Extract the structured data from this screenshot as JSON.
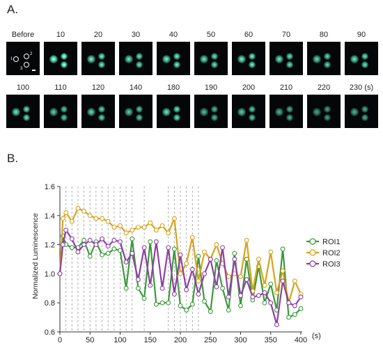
{
  "panel_a": {
    "letter": "A.",
    "frames": [
      {
        "label": "Before",
        "intensity": 0.0
      },
      {
        "label": "10",
        "intensity": 1.0
      },
      {
        "label": "20",
        "intensity": 0.85
      },
      {
        "label": "30",
        "intensity": 0.8
      },
      {
        "label": "40",
        "intensity": 0.85
      },
      {
        "label": "50",
        "intensity": 0.8
      },
      {
        "label": "60",
        "intensity": 0.85
      },
      {
        "label": "70",
        "intensity": 0.8
      },
      {
        "label": "80",
        "intensity": 0.75
      },
      {
        "label": "90",
        "intensity": 0.8
      },
      {
        "label": "100",
        "intensity": 0.8
      },
      {
        "label": "110",
        "intensity": 0.7
      },
      {
        "label": "120",
        "intensity": 0.75
      },
      {
        "label": "140",
        "intensity": 0.7
      },
      {
        "label": "180",
        "intensity": 0.8
      },
      {
        "label": "190",
        "intensity": 0.65
      },
      {
        "label": "200",
        "intensity": 0.7
      },
      {
        "label": "210",
        "intensity": 0.6
      },
      {
        "label": "220",
        "intensity": 0.55
      },
      {
        "label": "230 (s)",
        "intensity": 0.6
      }
    ],
    "roi_labels": [
      "1",
      "2",
      "3"
    ]
  },
  "panel_b": {
    "letter": "B."
  },
  "colors": {
    "ROI1": "#3a9a3a",
    "ROI2": "#d9a21a",
    "ROI3": "#8e3fa5",
    "glow": "#3ee0a8"
  },
  "chart_data": {
    "type": "line",
    "title": "",
    "xlabel": "(s)",
    "ylabel": "Normalized Luminescence",
    "xlim": [
      0,
      400
    ],
    "ylim": [
      0.6,
      1.6
    ],
    "xticks": [
      "0",
      "50",
      "100",
      "150",
      "200",
      "250",
      "300",
      "350",
      "400"
    ],
    "yticks": [
      "0.6",
      "0.8",
      "1.0",
      "1.2",
      "1.4",
      "1.6"
    ],
    "stimulation_times": [
      10,
      20,
      30,
      40,
      50,
      60,
      70,
      80,
      90,
      100,
      110,
      120,
      140,
      180,
      190,
      200,
      210,
      220,
      230
    ],
    "legend_position": "right",
    "x": [
      0,
      5,
      10,
      20,
      30,
      40,
      50,
      60,
      70,
      80,
      90,
      100,
      110,
      120,
      130,
      140,
      150,
      160,
      170,
      180,
      190,
      200,
      210,
      220,
      230,
      240,
      250,
      260,
      270,
      280,
      290,
      300,
      310,
      320,
      330,
      340,
      350,
      360,
      370,
      380,
      390,
      400
    ],
    "series": [
      {
        "name": "ROI1",
        "values": [
          1.0,
          1.26,
          1.2,
          1.18,
          1.18,
          1.23,
          1.12,
          1.22,
          1.13,
          1.14,
          1.17,
          1.16,
          0.9,
          1.24,
          0.9,
          0.83,
          1.22,
          0.79,
          0.8,
          0.8,
          1.17,
          0.78,
          0.75,
          0.79,
          1.12,
          0.81,
          0.74,
          1.09,
          0.9,
          0.75,
          1.14,
          0.78,
          1.1,
          0.82,
          1.05,
          0.8,
          0.93,
          0.75,
          1.17,
          0.7,
          0.72,
          0.76
        ]
      },
      {
        "name": "ROI2",
        "values": [
          1.0,
          1.38,
          1.42,
          1.36,
          1.45,
          1.43,
          1.4,
          1.38,
          1.38,
          1.36,
          1.32,
          1.33,
          1.28,
          1.3,
          1.32,
          1.32,
          1.35,
          1.3,
          1.33,
          1.28,
          1.38,
          1.0,
          1.07,
          1.25,
          0.95,
          1.15,
          1.1,
          1.2,
          1.07,
          0.98,
          1.0,
          0.98,
          1.23,
          0.88,
          1.1,
          0.92,
          1.15,
          0.87,
          1.02,
          0.8,
          0.95,
          0.86
        ]
      },
      {
        "name": "ROI3",
        "values": [
          1.0,
          1.2,
          1.3,
          1.24,
          1.15,
          1.2,
          1.23,
          1.2,
          1.24,
          1.19,
          1.23,
          1.22,
          1.08,
          1.14,
          0.96,
          1.18,
          0.92,
          1.22,
          0.9,
          1.18,
          0.86,
          1.13,
          0.89,
          1.03,
          0.86,
          1.0,
          1.1,
          0.91,
          1.18,
          0.84,
          1.1,
          0.85,
          0.96,
          0.84,
          0.85,
          0.87,
          0.8,
          0.65,
          0.95,
          0.8,
          0.78,
          0.84
        ]
      }
    ]
  }
}
